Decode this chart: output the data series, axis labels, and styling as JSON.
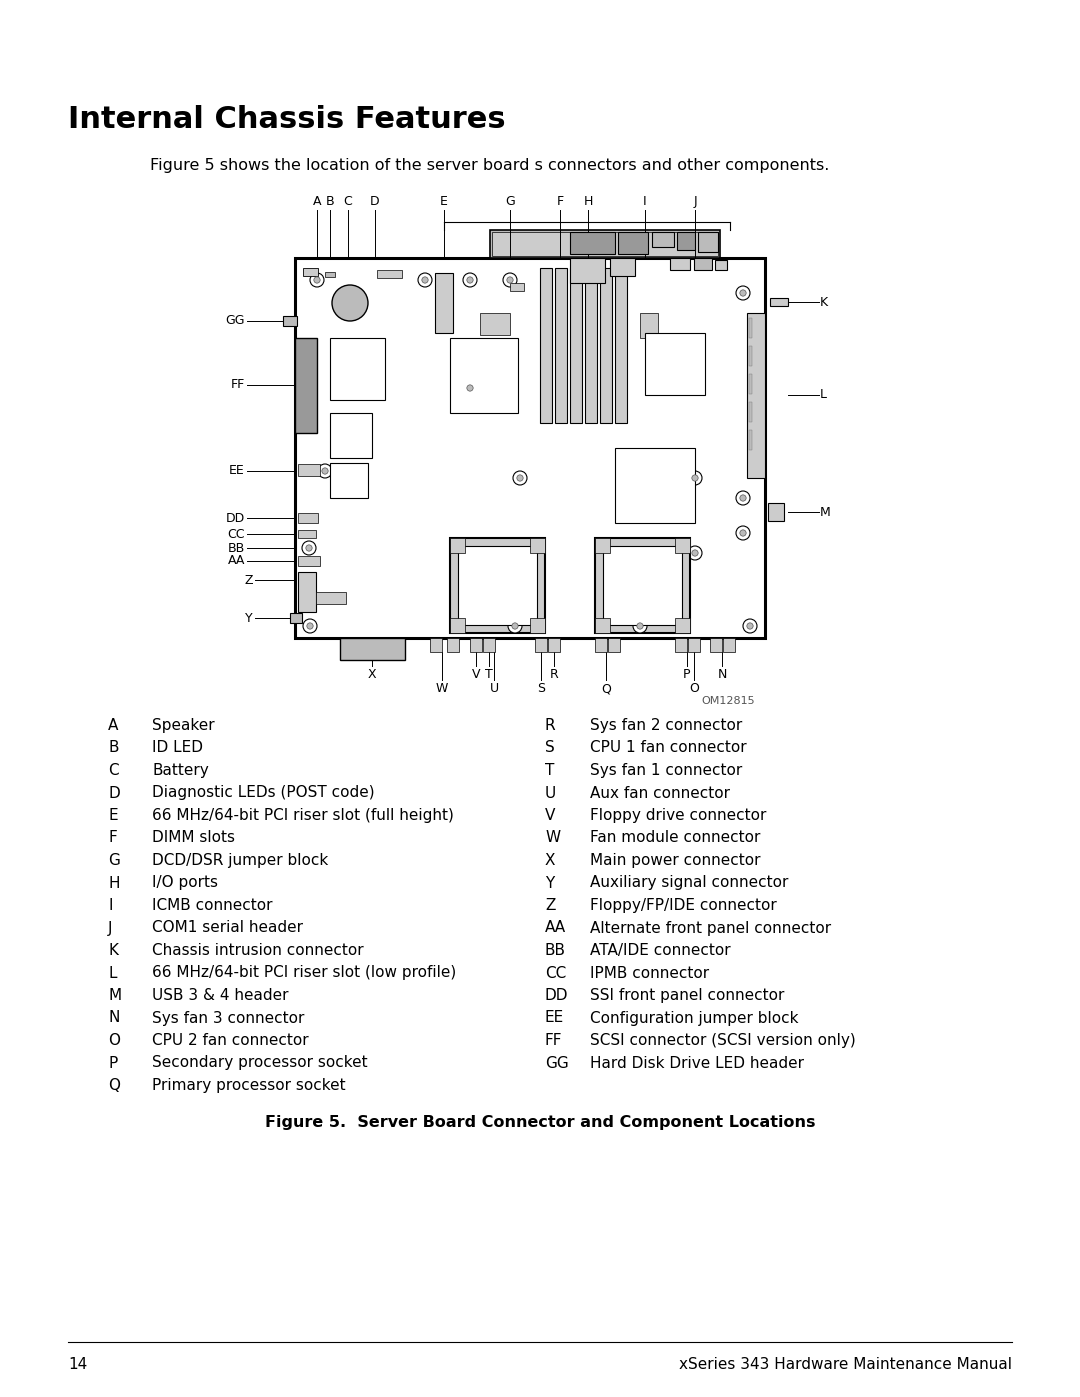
{
  "title": "Internal Chassis Features",
  "subtitle": "Figure 5 shows the location of the server board s connectors and other components.",
  "figure_label": "Figure 5.  Server Board Connector and Component Locations",
  "figure_id": "OM12815",
  "page_number": "14",
  "footer_right": "xSeries 343 Hardware Maintenance Manual",
  "legend_left": [
    [
      "A",
      "Speaker"
    ],
    [
      "B",
      "ID LED"
    ],
    [
      "C",
      "Battery"
    ],
    [
      "D",
      "Diagnostic LEDs (POST code)"
    ],
    [
      "E",
      "66 MHz/64-bit PCI riser slot (full height)"
    ],
    [
      "F",
      "DIMM slots"
    ],
    [
      "G",
      "DCD/DSR jumper block"
    ],
    [
      "H",
      "I/O ports"
    ],
    [
      "I",
      "ICMB connector"
    ],
    [
      "J",
      "COM1 serial header"
    ],
    [
      "K",
      "Chassis intrusion connector"
    ],
    [
      "L",
      "66 MHz/64-bit PCI riser slot (low profile)"
    ],
    [
      "M",
      "USB 3 & 4 header"
    ],
    [
      "N",
      "Sys fan 3 connector"
    ],
    [
      "O",
      "CPU 2 fan connector"
    ],
    [
      "P",
      "Secondary processor socket"
    ],
    [
      "Q",
      "Primary processor socket"
    ]
  ],
  "legend_right": [
    [
      "R",
      "Sys fan 2 connector"
    ],
    [
      "S",
      "CPU 1 fan connector"
    ],
    [
      "T",
      "Sys fan 1 connector"
    ],
    [
      "U",
      "Aux fan connector"
    ],
    [
      "V",
      "Floppy drive connector"
    ],
    [
      "W",
      "Fan module connector"
    ],
    [
      "X",
      "Main power connector"
    ],
    [
      "Y",
      "Auxiliary signal connector"
    ],
    [
      "Z",
      "Floppy/FP/IDE connector"
    ],
    [
      "AA",
      "Alternate front panel connector"
    ],
    [
      "BB",
      "ATA/IDE connector"
    ],
    [
      "CC",
      "IPMB connector"
    ],
    [
      "DD",
      "SSI front panel connector"
    ],
    [
      "EE",
      "Configuration jumper block"
    ],
    [
      "FF",
      "SCSI connector (SCSI version only)"
    ],
    [
      "GG",
      "Hard Disk Drive LED header"
    ]
  ]
}
